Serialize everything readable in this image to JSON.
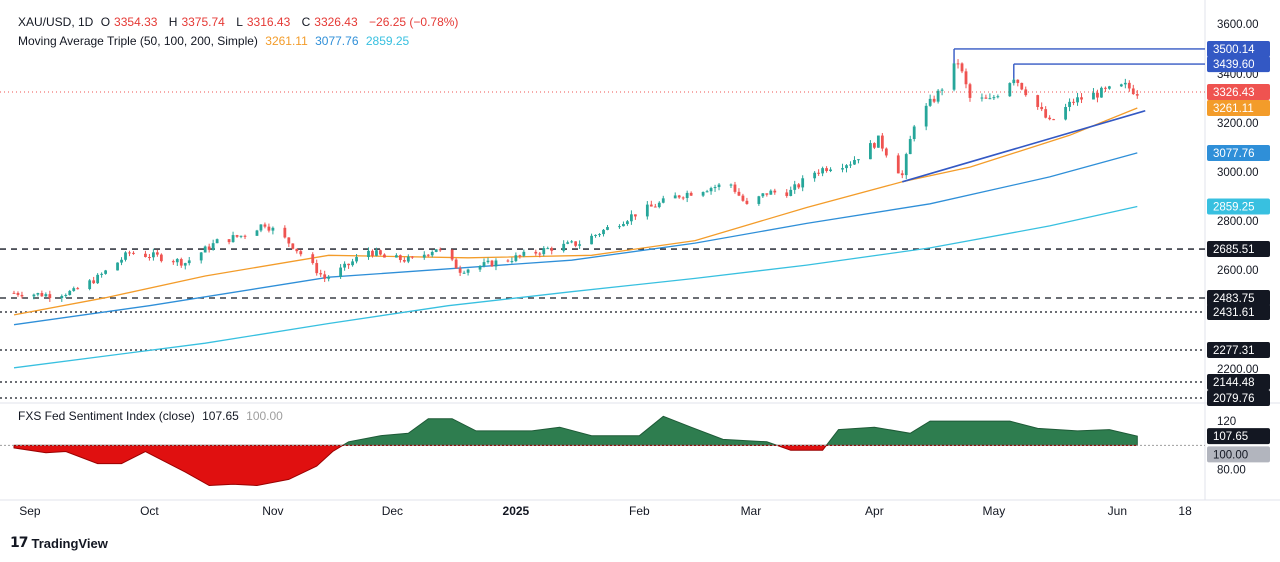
{
  "header": {
    "symbol": "XAU/USD, 1D",
    "open_label": "O",
    "open": "3354.33",
    "high_label": "H",
    "high": "3375.74",
    "low_label": "L",
    "low": "3316.43",
    "close_label": "C",
    "close": "3326.43",
    "change": "−26.25 (−0.78%)"
  },
  "ma_legend": {
    "label": "Moving Average Triple (50, 100, 200, Simple)",
    "ma50": "3261.11",
    "ma100": "3077.76",
    "ma200": "2859.25"
  },
  "sentiment_legend": {
    "label": "FXS Fed Sentiment Index (close)",
    "value": "107.65",
    "baseline": "100.00"
  },
  "brand": {
    "name": "TradingView",
    "logo": "17"
  },
  "colors": {
    "up": "#26a69a",
    "down": "#ef5350",
    "ma50": "#f39c2a",
    "ma100": "#2f8fd8",
    "ma200": "#38c0e0",
    "trend": "#3358c4",
    "sentiment_pos": "#2e7d4f",
    "sentiment_neg": "#e01010"
  },
  "chart_data": [
    {
      "type": "candlestick",
      "title": "XAU/USD, 1D",
      "x_tick_labels": [
        "Sep",
        "Oct",
        "Nov",
        "Dec",
        "2025",
        "Feb",
        "Mar",
        "Apr",
        "May",
        "Jun",
        "18"
      ],
      "y_tick_labels": [
        "3600.00",
        "3400.00",
        "3200.00",
        "3000.00",
        "2800.00",
        "2600.00",
        "2200.00"
      ],
      "ylim": [
        2080,
        3620
      ],
      "price_levels": [
        {
          "label": "3500.14",
          "value": 3500.14,
          "style": "solid",
          "color": "#3358c4"
        },
        {
          "label": "3439.60",
          "value": 3439.6,
          "style": "solid",
          "color": "#3358c4"
        },
        {
          "label": "2685.51",
          "value": 2685.51,
          "style": "dashed",
          "color": "#131722"
        },
        {
          "label": "2483.75",
          "value": 2483.75,
          "style": "dashed",
          "color": "#131722"
        },
        {
          "label": "2431.61",
          "value": 2431.61,
          "style": "dotted",
          "color": "#131722"
        },
        {
          "label": "2277.31",
          "value": 2277.31,
          "style": "dotted",
          "color": "#131722"
        },
        {
          "label": "2144.48",
          "value": 2144.48,
          "style": "dotted",
          "color": "#131722"
        },
        {
          "label": "2079.76",
          "value": 2079.76,
          "style": "dotted",
          "color": "#131722"
        }
      ],
      "last_price": {
        "label": "3326.43",
        "value": 3326.43,
        "color": "#ef5350"
      },
      "close_points": [
        [
          "2024-08-28",
          2505
        ],
        [
          "2024-09-06",
          2497
        ],
        [
          "2024-09-12",
          2510
        ],
        [
          "2024-09-18",
          2568
        ],
        [
          "2024-09-26",
          2670
        ],
        [
          "2024-10-03",
          2655
        ],
        [
          "2024-10-10",
          2630
        ],
        [
          "2024-10-18",
          2715
        ],
        [
          "2024-10-24",
          2740
        ],
        [
          "2024-10-30",
          2790
        ],
        [
          "2024-11-06",
          2700
        ],
        [
          "2024-11-14",
          2565
        ],
        [
          "2024-11-19",
          2610
        ],
        [
          "2024-11-25",
          2680
        ],
        [
          "2024-11-29",
          2650
        ],
        [
          "2024-12-06",
          2640
        ],
        [
          "2024-12-12",
          2690
        ],
        [
          "2024-12-18",
          2600
        ],
        [
          "2024-12-24",
          2620
        ],
        [
          "2025-01-02",
          2655
        ],
        [
          "2025-01-10",
          2690
        ],
        [
          "2025-01-17",
          2710
        ],
        [
          "2025-01-24",
          2770
        ],
        [
          "2025-01-31",
          2830
        ],
        [
          "2025-02-06",
          2870
        ],
        [
          "2025-02-11",
          2905
        ],
        [
          "2025-02-18",
          2935
        ],
        [
          "2025-02-24",
          2950
        ],
        [
          "2025-02-28",
          2860
        ],
        [
          "2025-03-05",
          2915
        ],
        [
          "2025-03-11",
          2920
        ],
        [
          "2025-03-17",
          3000
        ],
        [
          "2025-03-21",
          3025
        ],
        [
          "2025-03-26",
          3040
        ],
        [
          "2025-04-02",
          3130
        ],
        [
          "2025-04-08",
          2985
        ],
        [
          "2025-04-11",
          3200
        ],
        [
          "2025-04-17",
          3320
        ],
        [
          "2025-04-22",
          3450
        ],
        [
          "2025-04-25",
          3300
        ],
        [
          "2025-04-30",
          3290
        ],
        [
          "2025-05-06",
          3390
        ],
        [
          "2025-05-09",
          3330
        ],
        [
          "2025-05-15",
          3200
        ],
        [
          "2025-05-21",
          3290
        ],
        [
          "2025-05-27",
          3320
        ],
        [
          "2025-06-03",
          3350
        ],
        [
          "2025-06-06",
          3326.43
        ]
      ],
      "series": [
        {
          "name": "50",
          "last": 3261.11,
          "points": [
            [
              "2024-08-28",
              2420
            ],
            [
              "2024-09-20",
              2485
            ],
            [
              "2024-10-15",
              2575
            ],
            [
              "2024-11-15",
              2660
            ],
            [
              "2024-12-20",
              2650
            ],
            [
              "2025-01-20",
              2660
            ],
            [
              "2025-02-15",
              2720
            ],
            [
              "2025-03-15",
              2855
            ],
            [
              "2025-04-08",
              2960
            ],
            [
              "2025-04-25",
              3020
            ],
            [
              "2025-05-20",
              3150
            ],
            [
              "2025-06-06",
              3261.11
            ]
          ]
        },
        {
          "name": "100",
          "last": 3077.76,
          "points": [
            [
              "2024-08-28",
              2380
            ],
            [
              "2024-10-01",
              2455
            ],
            [
              "2024-11-15",
              2570
            ],
            [
              "2025-01-15",
              2640
            ],
            [
              "2025-02-15",
              2710
            ],
            [
              "2025-03-15",
              2790
            ],
            [
              "2025-04-15",
              2870
            ],
            [
              "2025-05-15",
              2980
            ],
            [
              "2025-06-06",
              3077.76
            ]
          ]
        },
        {
          "name": "200",
          "last": 2859.25,
          "points": [
            [
              "2024-08-28",
              2205
            ],
            [
              "2024-10-15",
              2305
            ],
            [
              "2024-11-15",
              2385
            ],
            [
              "2024-12-15",
              2455
            ],
            [
              "2025-01-15",
              2510
            ],
            [
              "2025-02-15",
              2565
            ],
            [
              "2025-03-15",
              2620
            ],
            [
              "2025-04-15",
              2690
            ],
            [
              "2025-05-15",
              2780
            ],
            [
              "2025-06-06",
              2859.25
            ]
          ]
        }
      ],
      "trendline": [
        [
          "2025-04-08",
          2960
        ],
        [
          "2025-06-08",
          3250
        ]
      ]
    },
    {
      "type": "area",
      "title": "FXS Fed Sentiment Index (close)",
      "y_tick_labels": [
        "120",
        "80.00"
      ],
      "ylim": [
        60,
        130
      ],
      "baseline": 100,
      "last": 107.65,
      "points": [
        [
          "2024-08-28",
          98
        ],
        [
          "2024-09-05",
          94
        ],
        [
          "2024-09-10",
          95
        ],
        [
          "2024-09-18",
          85
        ],
        [
          "2024-09-24",
          85
        ],
        [
          "2024-09-30",
          95
        ],
        [
          "2024-10-10",
          78
        ],
        [
          "2024-10-16",
          67
        ],
        [
          "2024-10-22",
          68
        ],
        [
          "2024-10-28",
          67
        ],
        [
          "2024-11-05",
          72
        ],
        [
          "2024-11-12",
          83
        ],
        [
          "2024-11-16",
          95
        ],
        [
          "2024-11-20",
          103
        ],
        [
          "2024-11-28",
          108
        ],
        [
          "2024-12-05",
          110
        ],
        [
          "2024-12-10",
          122
        ],
        [
          "2024-12-16",
          122
        ],
        [
          "2024-12-22",
          112
        ],
        [
          "2025-01-05",
          112
        ],
        [
          "2025-01-12",
          115
        ],
        [
          "2025-01-20",
          108
        ],
        [
          "2025-02-01",
          108
        ],
        [
          "2025-02-07",
          124
        ],
        [
          "2025-02-14",
          115
        ],
        [
          "2025-02-22",
          105
        ],
        [
          "2025-03-05",
          103
        ],
        [
          "2025-03-11",
          96
        ],
        [
          "2025-03-19",
          96
        ],
        [
          "2025-03-23",
          113
        ],
        [
          "2025-04-01",
          115
        ],
        [
          "2025-04-10",
          110
        ],
        [
          "2025-04-15",
          120
        ],
        [
          "2025-05-05",
          120
        ],
        [
          "2025-05-12",
          114
        ],
        [
          "2025-05-22",
          112
        ],
        [
          "2025-05-30",
          113
        ],
        [
          "2025-06-06",
          107.65
        ]
      ]
    }
  ]
}
